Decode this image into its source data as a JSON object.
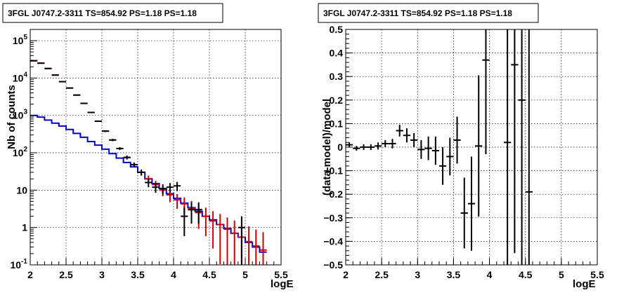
{
  "chart_data": [
    {
      "type": "line",
      "title": "3FGL J0747.2-3311 TS=854.92 PS=1.18 PS=1.18",
      "xlabel": "logE",
      "ylabel": "Nb of counts",
      "xlim": [
        2,
        5.5
      ],
      "ylim": [
        0.1,
        200000
      ],
      "yscale": "log",
      "grid": true,
      "x_ticks": [
        "2",
        "2.5",
        "3",
        "3.5",
        "4",
        "4.5",
        "5",
        "5.5"
      ],
      "y_ticks": [
        {
          "value": 0.1,
          "base": "10",
          "exp": "-1"
        },
        {
          "value": 1,
          "base": "1",
          "exp": ""
        },
        {
          "value": 10,
          "base": "10",
          "exp": ""
        },
        {
          "value": 100,
          "base": "10",
          "exp": "2"
        },
        {
          "value": 1000,
          "base": "10",
          "exp": "3"
        },
        {
          "value": 10000,
          "base": "10",
          "exp": "4"
        },
        {
          "value": 100000,
          "base": "10",
          "exp": "5"
        }
      ],
      "bin_width": 0.1,
      "series": [
        {
          "color": "#0000cc",
          "style": "step",
          "x": [
            2.0,
            2.1,
            2.2,
            2.3,
            2.4,
            2.5,
            2.6,
            2.7,
            2.8,
            2.9,
            3.0,
            3.1,
            3.2,
            3.3,
            3.4,
            3.5,
            3.6,
            3.7,
            3.8,
            3.9,
            4.0,
            4.1,
            4.2,
            4.3,
            4.4,
            4.5,
            4.6,
            4.7,
            4.8,
            4.9,
            5.0,
            5.1,
            5.2
          ],
          "values": [
            1000,
            900,
            750,
            620,
            520,
            420,
            330,
            260,
            200,
            160,
            125,
            95,
            72,
            55,
            42,
            30,
            20,
            15,
            11,
            8,
            6,
            4.5,
            3.4,
            2.7,
            2.0,
            1.6,
            1.2,
            0.95,
            0.7,
            0.55,
            0.4,
            0.3,
            0.22
          ]
        },
        {
          "color": "#cc0000",
          "style": "errorbar",
          "x": [
            2.05,
            2.15,
            2.25,
            2.35,
            2.45,
            2.55,
            2.65,
            2.75,
            2.85,
            2.95,
            3.05,
            3.15,
            3.25,
            3.35,
            3.45,
            3.55,
            3.65,
            3.75,
            3.85,
            3.95,
            4.05,
            4.15,
            4.25,
            4.35,
            4.45,
            4.55,
            4.65,
            4.75,
            4.85,
            4.95,
            5.05,
            5.15,
            5.25
          ],
          "values": [
            29000,
            25000,
            18000,
            12000,
            8000,
            5400,
            3500,
            2100,
            1200,
            700,
            380,
            220,
            130,
            75,
            48,
            30,
            20,
            14,
            10,
            7.5,
            5.5,
            4.3,
            3.3,
            2.5,
            2.0,
            1.5,
            1.2,
            0.9,
            0.7,
            0.55,
            0.42,
            0.32,
            0.25
          ]
        },
        {
          "color": "#000000",
          "style": "errorbar",
          "x": [
            2.05,
            2.15,
            2.25,
            2.35,
            2.45,
            2.55,
            2.65,
            2.75,
            2.85,
            2.95,
            3.05,
            3.15,
            3.25,
            3.35,
            3.45,
            3.55,
            3.65,
            3.75,
            3.85,
            3.95,
            4.05,
            4.15,
            4.25,
            4.35,
            4.95
          ],
          "values": [
            29000,
            25000,
            18000,
            12000,
            8000,
            5400,
            3500,
            2100,
            1200,
            700,
            380,
            220,
            130,
            75,
            48,
            30,
            16,
            12,
            11,
            12,
            13,
            2,
            3,
            3,
            1
          ]
        }
      ]
    },
    {
      "type": "scatter",
      "title": "3FGL J0747.2-3311 TS=854.92 PS=1.18 PS=1.18",
      "xlabel": "logE",
      "ylabel": "(data-model)/model",
      "xlim": [
        2,
        5.5
      ],
      "ylim": [
        -0.5,
        0.5
      ],
      "grid": true,
      "x_ticks": [
        "2",
        "2.5",
        "3",
        "3.5",
        "4",
        "4.5",
        "5",
        "5.5"
      ],
      "y_ticks": [
        "-0.5",
        "-0.4",
        "-0.3",
        "-0.2",
        "-0.1",
        "0",
        "0.1",
        "0.2",
        "0.3",
        "0.4",
        "0.5"
      ],
      "bin_width": 0.1,
      "series": [
        {
          "color": "#000000",
          "style": "errorbar",
          "x": [
            2.05,
            2.15,
            2.25,
            2.35,
            2.45,
            2.55,
            2.65,
            2.75,
            2.85,
            2.95,
            3.05,
            3.15,
            3.25,
            3.35,
            3.45,
            3.55,
            3.65,
            3.75,
            3.85,
            3.95,
            4.25,
            4.35,
            4.45,
            4.55
          ],
          "values": [
            0.01,
            -0.005,
            0.0,
            0.0,
            0.005,
            0.015,
            0.015,
            0.07,
            0.05,
            0.03,
            -0.01,
            -0.005,
            -0.015,
            -0.08,
            -0.04,
            0.03,
            -0.28,
            -0.24,
            0.005,
            0.37,
            0.02,
            0.35,
            0.2,
            -0.19
          ],
          "err": [
            0.01,
            0.01,
            0.012,
            0.012,
            0.015,
            0.015,
            0.02,
            0.025,
            0.03,
            0.03,
            0.04,
            0.05,
            0.06,
            0.08,
            0.08,
            0.1,
            0.15,
            0.2,
            0.3,
            0.4,
            0.7,
            0.8,
            0.8,
            0.9
          ]
        }
      ]
    }
  ]
}
